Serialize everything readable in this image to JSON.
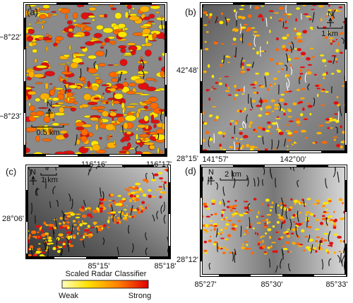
{
  "panels": [
    {
      "label": "(a)",
      "y_labels": [
        "−8°22'",
        "−8°23'"
      ],
      "x_labels": [
        "116°16'",
        "116°17'"
      ],
      "north": "N",
      "scale_label": "0.5 km"
    },
    {
      "label": "(b)",
      "y_labels": [
        "42°48'"
      ],
      "x_labels": [
        "141°57'",
        "142°00'"
      ],
      "north": "N",
      "scale_label": "1 km"
    },
    {
      "label": "(c)",
      "y_labels": [
        "28°06'"
      ],
      "x_labels": [
        "85°15'",
        "85°18'"
      ],
      "north": "N",
      "scale_label": "1 km"
    },
    {
      "label": "(d)",
      "y_labels": [
        "28°15'",
        "28°12'"
      ],
      "x_labels": [
        "85°27'",
        "85°30'",
        "85°33'"
      ],
      "north": "N",
      "scale_label": "2 km"
    }
  ],
  "colorbar": {
    "title": "Scaled Radar Classifier",
    "low": "Weak",
    "high": "Strong"
  }
}
